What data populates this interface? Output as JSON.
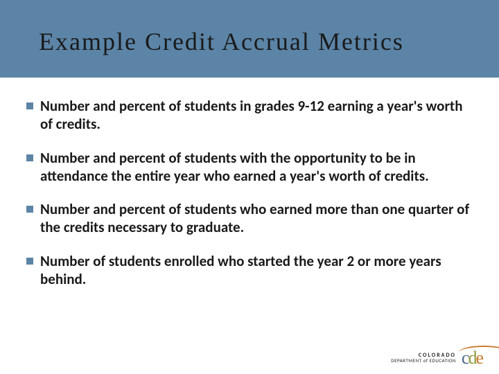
{
  "slide": {
    "title": "Example Credit Accrual Metrics",
    "title_fontsize": 36,
    "title_color": "#1a1a1a",
    "title_band_color": "#5b84a7",
    "background_color": "#ffffff",
    "bullets": [
      {
        "text": "Number and percent of students in grades 9-12 earning a year's worth of credits."
      },
      {
        "text": "Number and percent of students with the opportunity to be in attendance the entire year who earned a year's worth of credits."
      },
      {
        "text": "Number and percent of students who earned more than one quarter of the credits necessary to graduate."
      },
      {
        "text": "Number of students enrolled who started the year 2 or more years behind."
      }
    ],
    "bullet_marker_color": "#5b84a7",
    "bullet_fontsize": 21,
    "bullet_fontweight": 700,
    "bullet_color": "#1a1a1a"
  },
  "footer": {
    "org_line1": "COLORADO",
    "org_line2": "DEPARTMENT of EDUCATION",
    "logo_letters": {
      "c": {
        "char": "c",
        "color": "#4a6b8a"
      },
      "d": {
        "char": "d",
        "color": "#8a9b3a"
      },
      "e": {
        "char": "e",
        "color": "#c97a2a"
      }
    },
    "swoosh_color": "#c97a2a"
  }
}
